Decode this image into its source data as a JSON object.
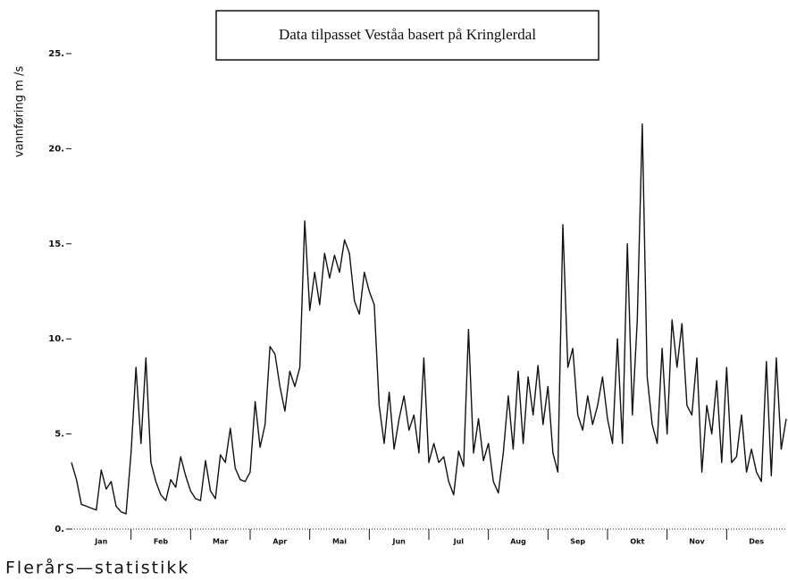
{
  "chart_data": {
    "type": "line",
    "title": "Data tilpasset Veståa basert på Kringlerdal",
    "ylabel": "vannføring  m /s",
    "footer": "Flerårs—statistikk",
    "month_labels": [
      "Jan",
      "Feb",
      "Mar",
      "Apr",
      "Mai",
      "Jun",
      "Jul",
      "Aug",
      "Sep",
      "Okt",
      "Nov",
      "Des"
    ],
    "values": [
      3.5,
      2.6,
      1.3,
      1.2,
      1.1,
      1.0,
      3.1,
      2.1,
      2.5,
      1.2,
      0.9,
      0.8,
      4.0,
      8.5,
      4.5,
      9.0,
      3.5,
      2.5,
      1.8,
      1.5,
      2.6,
      2.2,
      3.8,
      2.8,
      2.0,
      1.6,
      1.5,
      3.6,
      2.0,
      1.6,
      3.9,
      3.5,
      5.3,
      3.2,
      2.6,
      2.5,
      3.0,
      6.7,
      4.3,
      5.5,
      9.6,
      9.2,
      7.5,
      6.2,
      8.3,
      7.5,
      8.5,
      16.2,
      11.5,
      13.5,
      11.8,
      14.5,
      13.2,
      14.4,
      13.5,
      15.2,
      14.5,
      12.0,
      11.3,
      13.5,
      12.5,
      11.8,
      6.5,
      4.5,
      7.2,
      4.2,
      5.8,
      7.0,
      5.2,
      6.0,
      4.0,
      9.0,
      3.5,
      4.5,
      3.5,
      3.8,
      2.5,
      1.8,
      4.1,
      3.3,
      10.5,
      4.0,
      5.8,
      3.6,
      4.5,
      2.5,
      1.9,
      4.0,
      7.0,
      4.2,
      8.3,
      4.5,
      8.0,
      6.0,
      8.6,
      5.5,
      7.5,
      4.0,
      3.0,
      16.0,
      8.5,
      9.5,
      6.0,
      5.2,
      7.0,
      5.5,
      6.5,
      8.0,
      5.8,
      4.5,
      10.0,
      4.5,
      15.0,
      6.0,
      11.0,
      21.3,
      8.0,
      5.5,
      4.5,
      9.5,
      5.0,
      11.0,
      8.5,
      10.8,
      6.5,
      6.0,
      9.0,
      3.0,
      6.5,
      5.0,
      7.8,
      3.5,
      8.5,
      3.5,
      3.8,
      6.0,
      3.0,
      4.2,
      3.0,
      2.5,
      8.8,
      2.8,
      9.0,
      4.2,
      5.8
    ],
    "color": "#111111",
    "ylim": [
      0,
      25
    ],
    "yticks": [
      {
        "value": 0,
        "label": "0."
      },
      {
        "value": 5,
        "label": "5."
      },
      {
        "value": 10,
        "label": "10."
      },
      {
        "value": 15,
        "label": "15."
      },
      {
        "value": 20,
        "label": "20."
      },
      {
        "value": 25,
        "label": "25."
      }
    ]
  }
}
